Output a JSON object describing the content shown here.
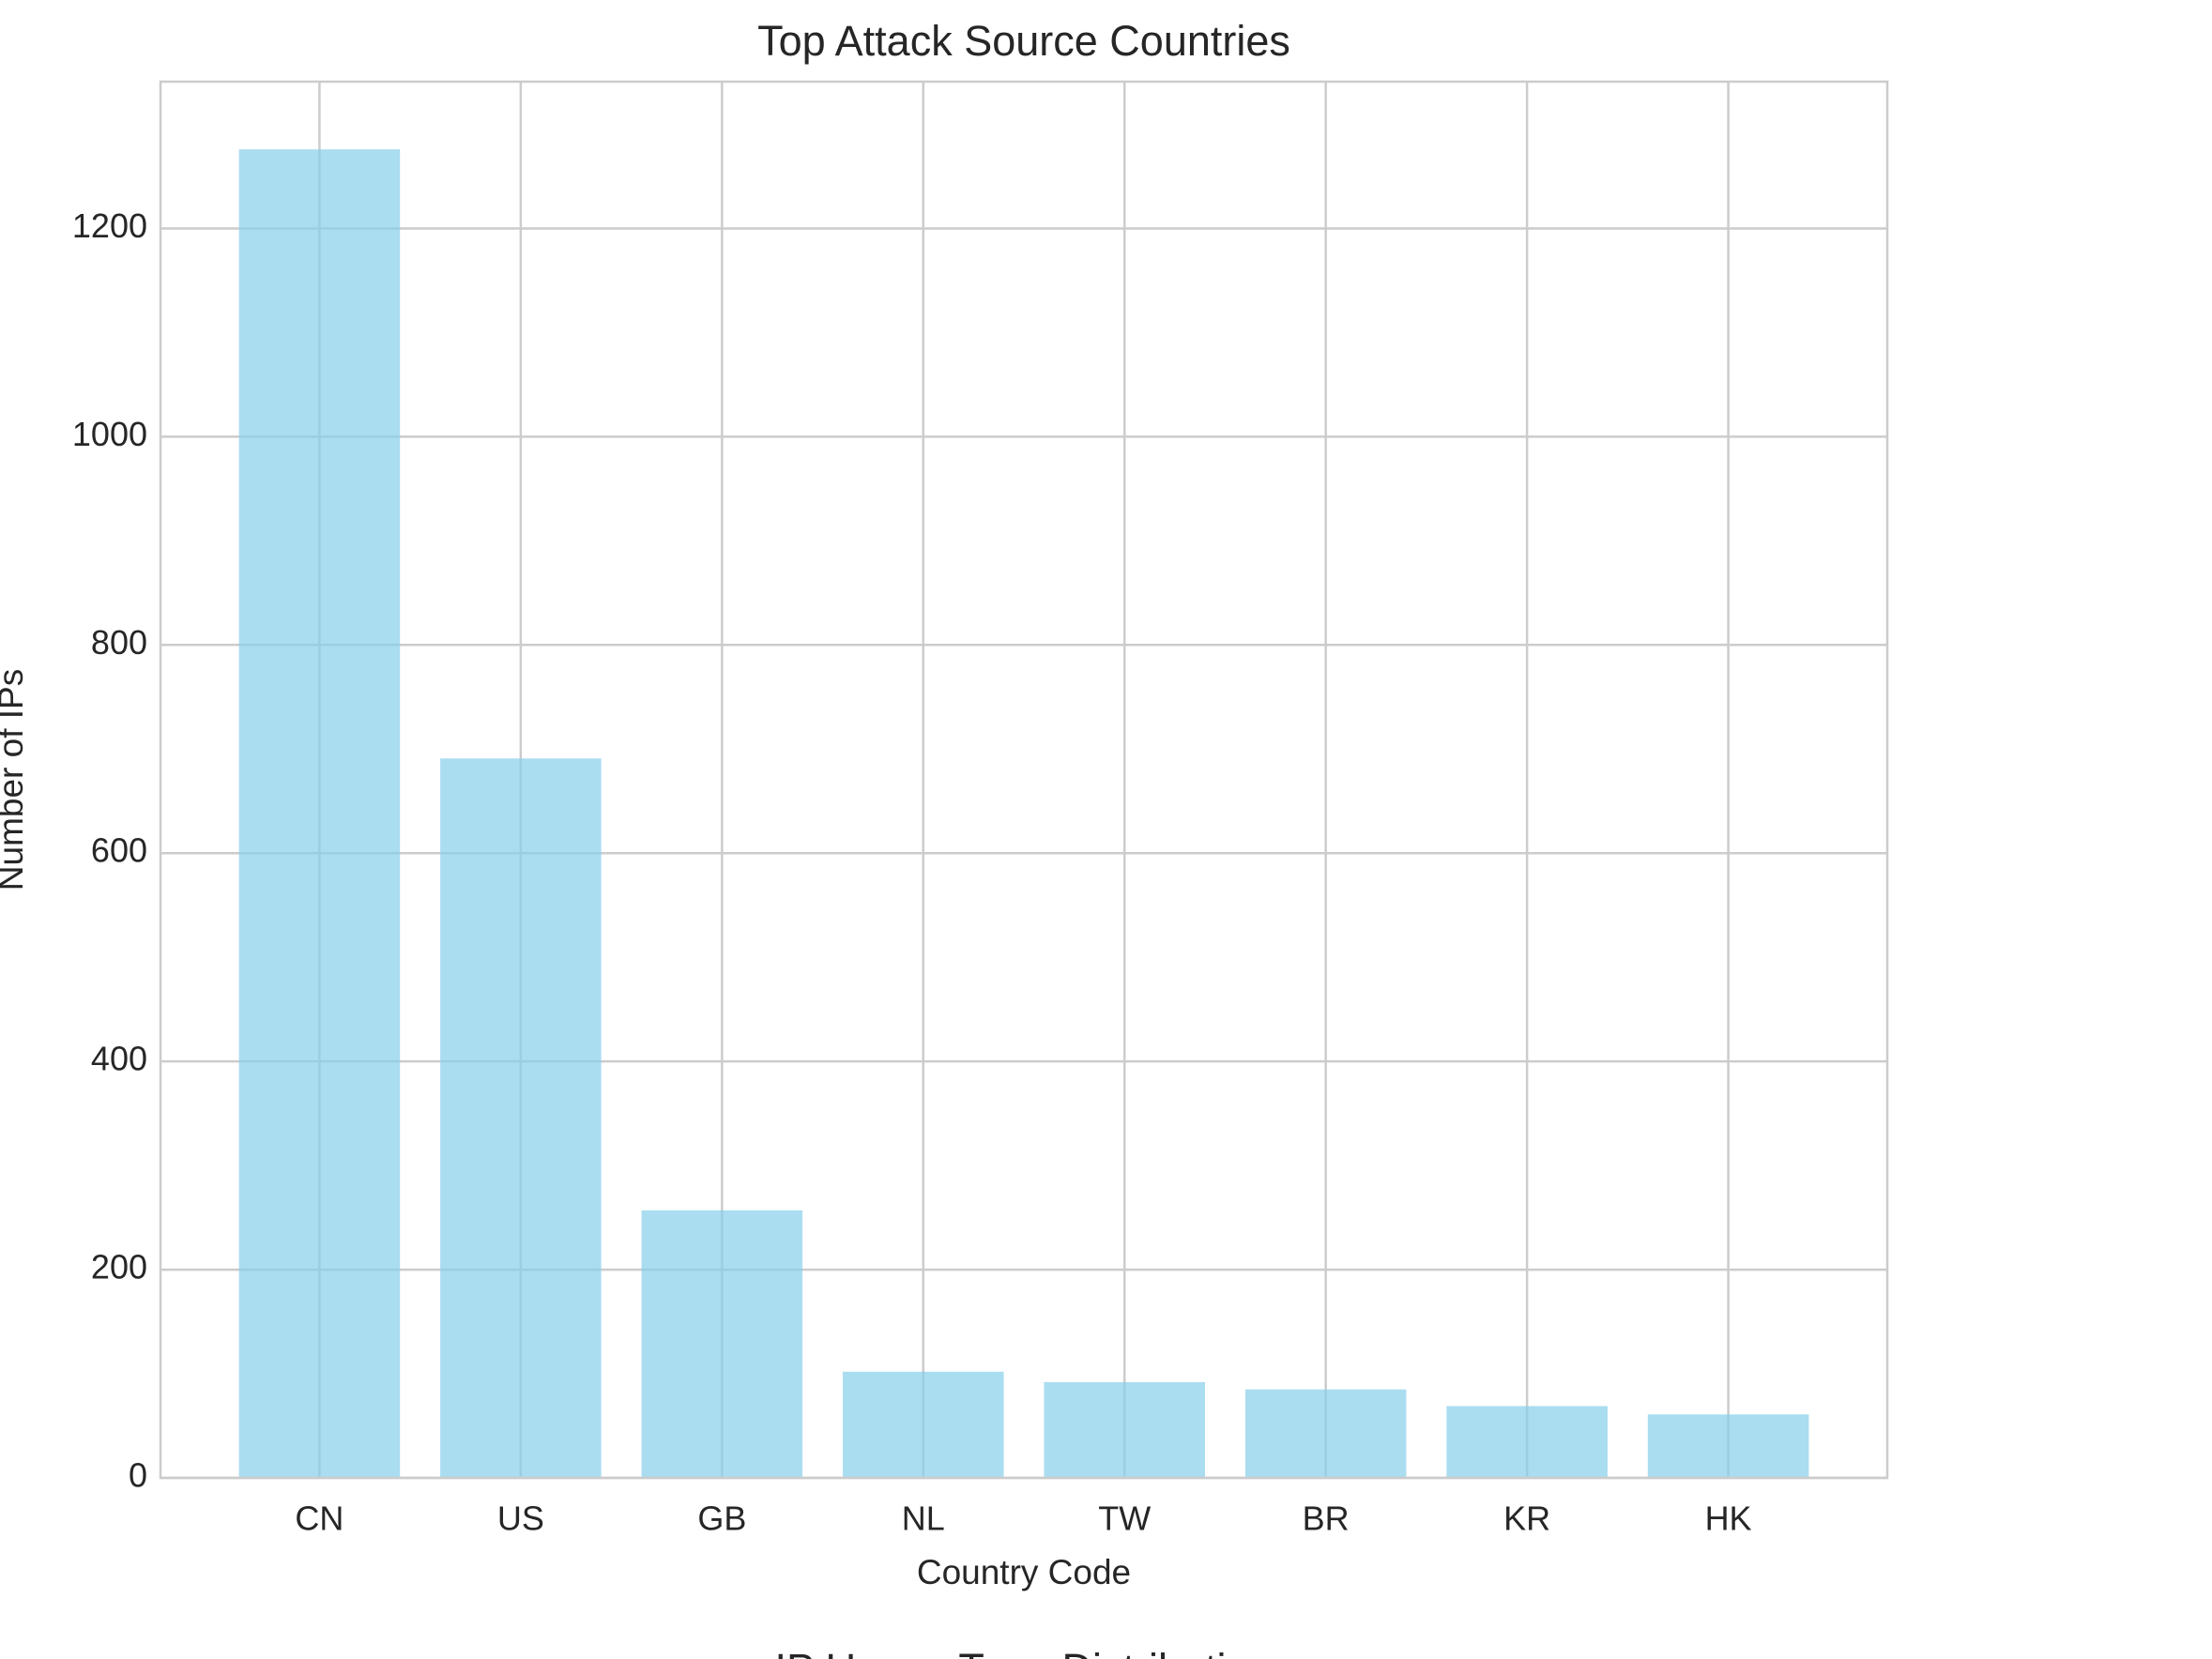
{
  "chart_data": [
    {
      "type": "bar",
      "title": "Top Attack Source Countries",
      "x_label": "Country Code",
      "y_label": "Number of IPs",
      "categories": [
        "CN",
        "US",
        "GB",
        "NL",
        "TW",
        "BR",
        "KR",
        "HK"
      ],
      "values": [
        1276,
        691,
        257,
        102,
        92,
        85,
        69,
        61
      ],
      "color": "#87ceeb",
      "ylim": [
        0,
        1341
      ],
      "yticks": [
        0,
        200,
        400,
        600,
        800,
        1000,
        1200
      ],
      "grid": true
    },
    {
      "title": "IP Usage Type Distribution"
    }
  ]
}
